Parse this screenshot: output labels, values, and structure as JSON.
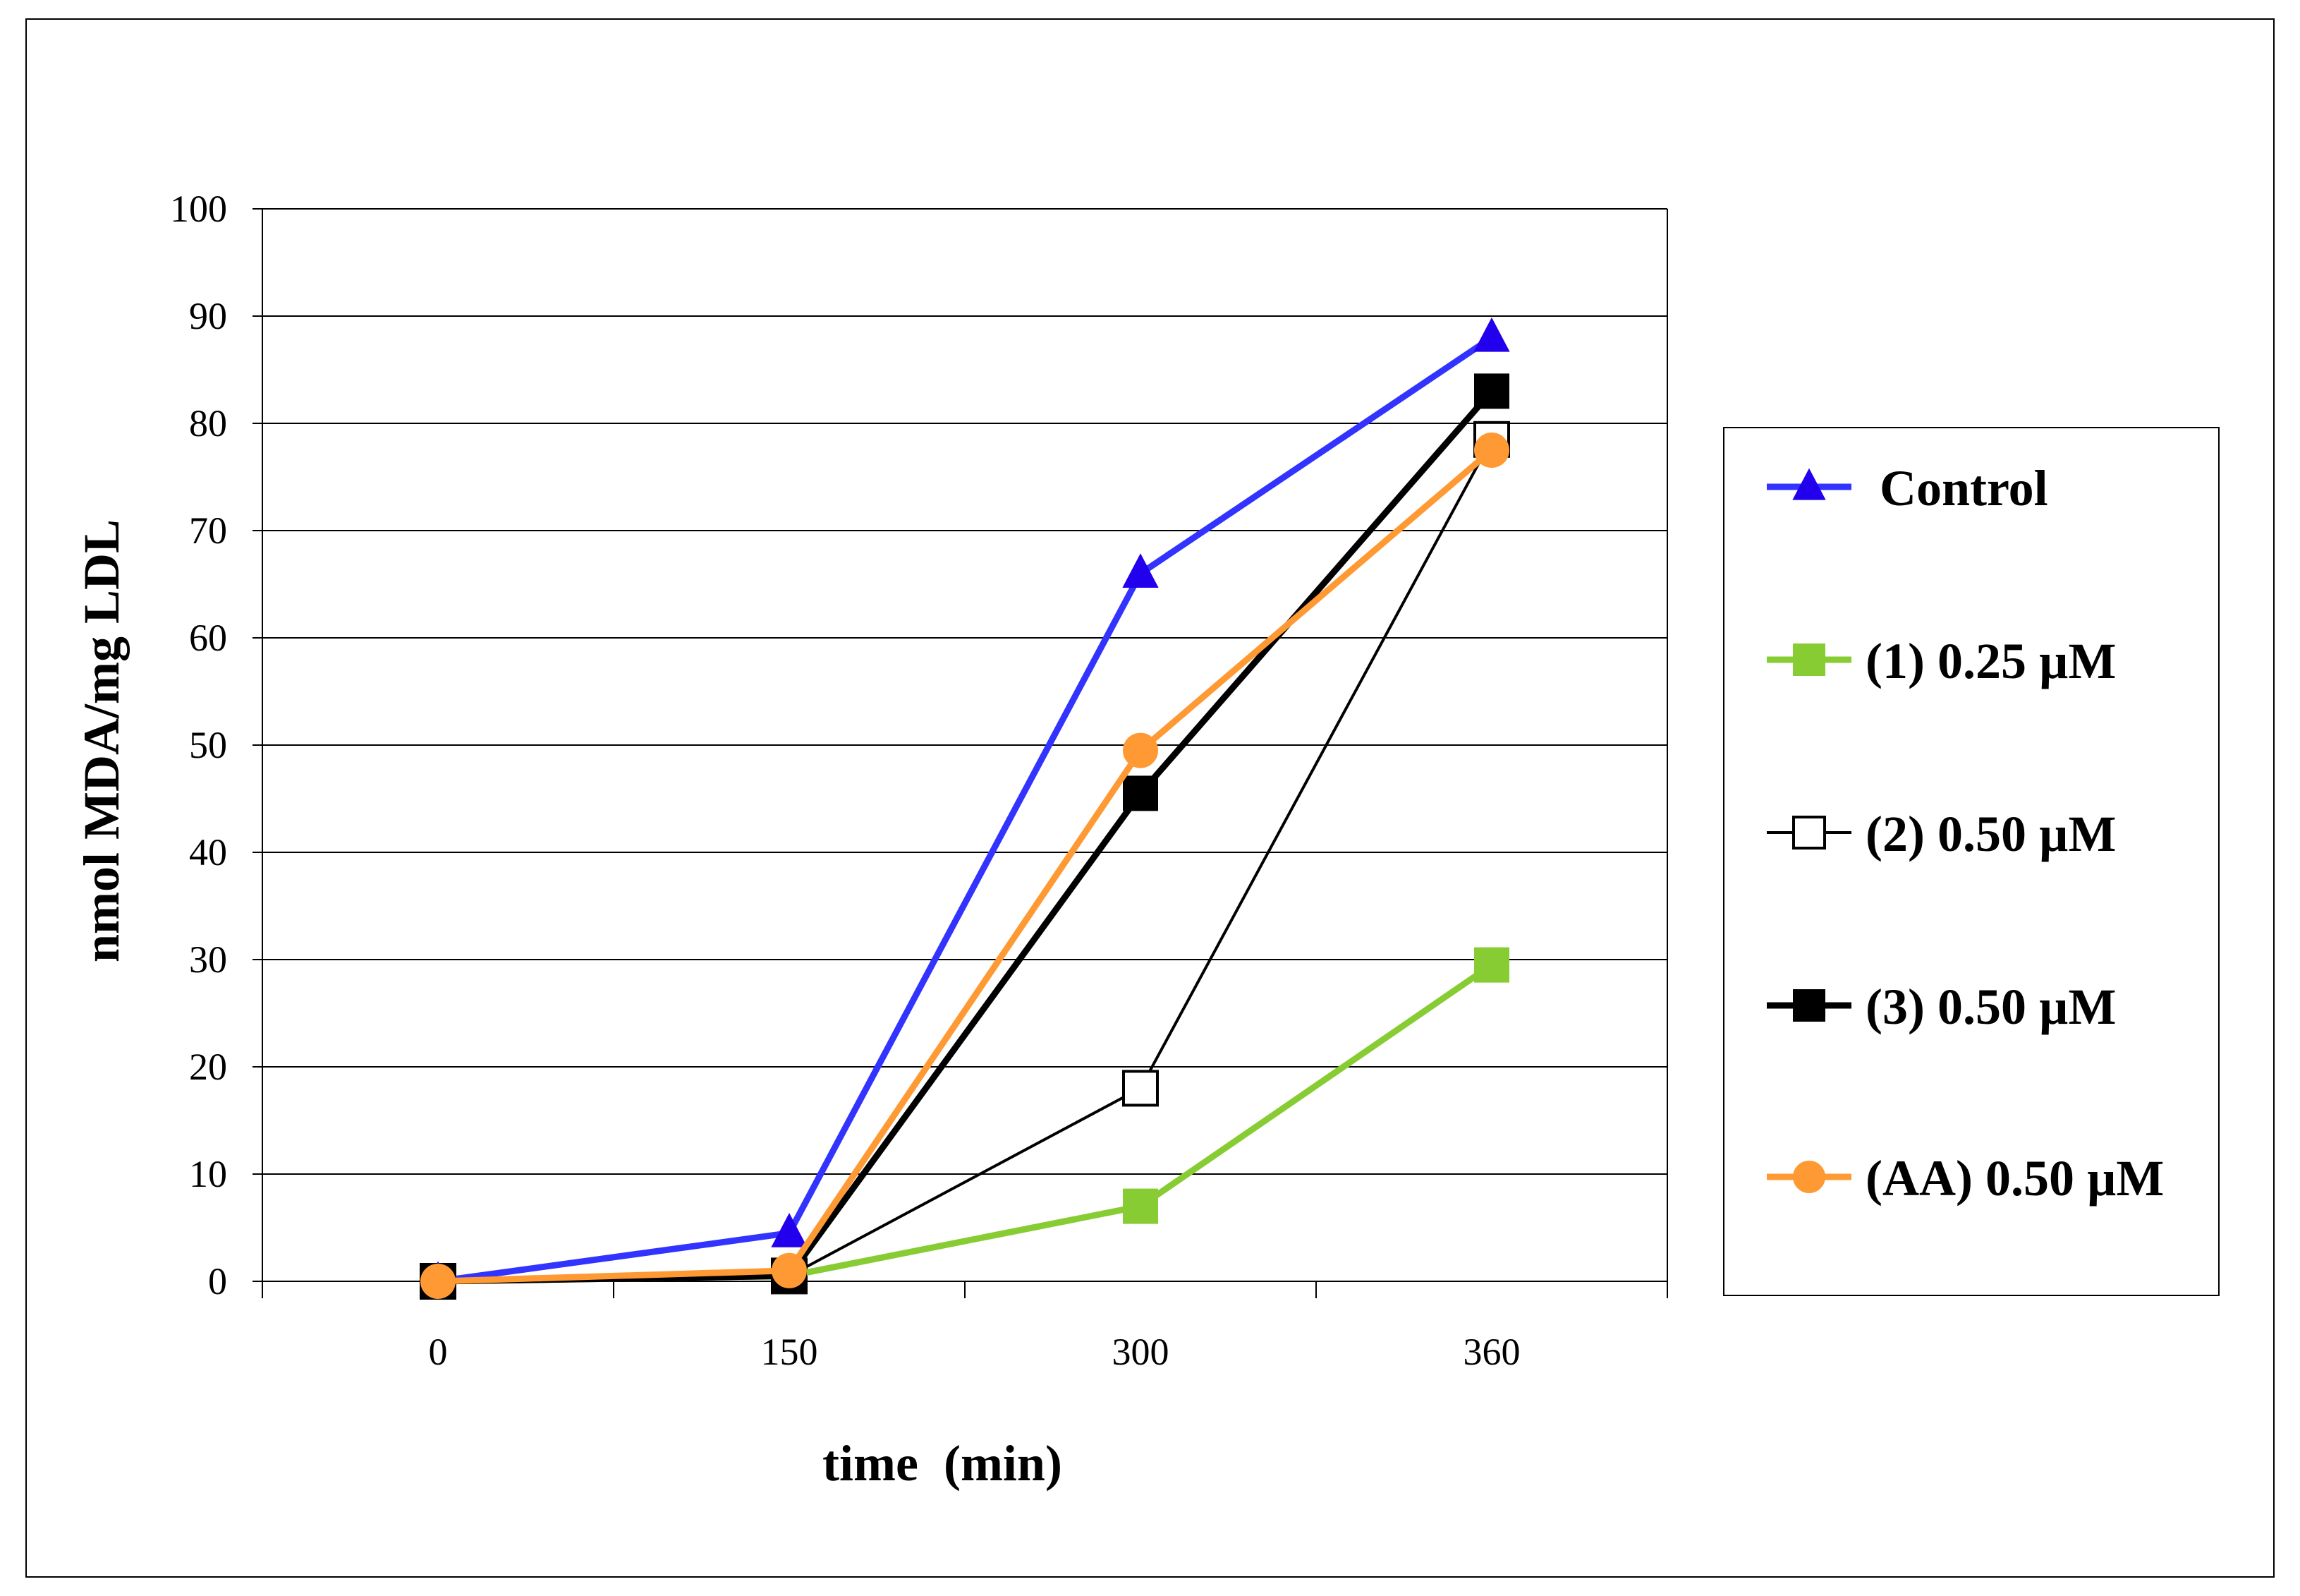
{
  "chart_data": {
    "type": "line",
    "xlabel": "time  (min)",
    "ylabel": "nmol MDA/mg LDL",
    "categories": [
      "0",
      "150",
      "300",
      "360"
    ],
    "ylim": [
      0,
      100
    ],
    "yticks": [
      0,
      10,
      20,
      30,
      40,
      50,
      60,
      70,
      80,
      90,
      100
    ],
    "grid": "horizontal",
    "legend_position": "right",
    "series": [
      {
        "name": "Control",
        "values": [
          0,
          4.5,
          66,
          88
        ],
        "color": "#3333ff",
        "marker": "triangle",
        "marker_color": "#2200ee",
        "line_weight": "thick"
      },
      {
        "name": "(1) 0.25 µM",
        "values": [
          0,
          0.5,
          7,
          29.5
        ],
        "color": "#88cc33",
        "marker": "square",
        "marker_color": "#88cc33",
        "line_weight": "thick"
      },
      {
        "name": "(2) 0.50 µM",
        "values": [
          0,
          0.5,
          18,
          78.5
        ],
        "color": "#000000",
        "marker": "square-open",
        "marker_color": "#ffffff",
        "line_weight": "thin"
      },
      {
        "name": "(3) 0.50 µM",
        "values": [
          0,
          0.5,
          45.5,
          83
        ],
        "color": "#000000",
        "marker": "square",
        "marker_color": "#000000",
        "line_weight": "thick"
      },
      {
        "name": "(AA) 0.50 µM",
        "values": [
          0,
          1,
          49.5,
          77.5
        ],
        "color": "#ff9933",
        "marker": "circle",
        "marker_color": "#ff9933",
        "line_weight": "thick"
      }
    ]
  }
}
